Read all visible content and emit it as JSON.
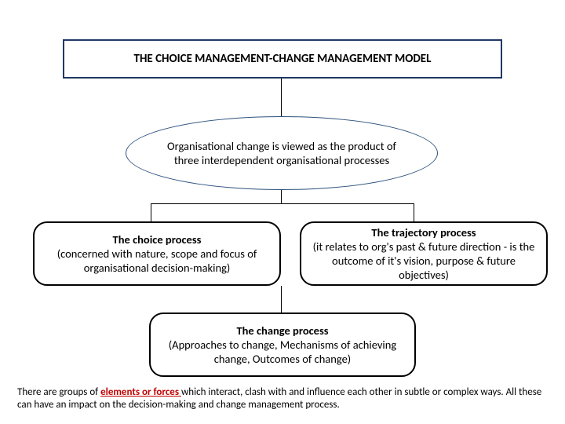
{
  "type": "flowchart",
  "background_color": "#ffffff",
  "title": {
    "text": "THE CHOICE MANAGEMENT-CHANGE MANAGEMENT MODEL",
    "border_color": "#1f3864",
    "font_weight": "bold",
    "font_size": 15
  },
  "ellipse": {
    "text": "Organisational change is viewed as the product of three interdependent organisational processes",
    "border_color": "#2e527e",
    "font_size": 14.5
  },
  "choice": {
    "heading": "The choice process",
    "body": "(concerned with nature, scope and focus of organisational decision-making)",
    "border_color": "#000000",
    "border_radius": 18
  },
  "trajectory": {
    "heading": "The trajectory process",
    "body": "(it relates to org's past & future direction - is the outcome of it's vision, purpose & future objectives)",
    "border_color": "#000000",
    "border_radius": 18
  },
  "change": {
    "heading": "The change process",
    "body": "(Approaches to change, Mechanisms of achieving change, Outcomes of change)",
    "border_color": "#000000",
    "border_radius": 18
  },
  "footer": {
    "prefix": "There are groups of ",
    "emphasis": "elements or forces ",
    "suffix": "which interact, clash with and influence each other in subtle or complex ways. All these can have an impact on the decision-making and change management process.",
    "emphasis_color": "#c00000",
    "font_size": 13
  },
  "connectors": {
    "color": "#000000",
    "width": 1
  }
}
